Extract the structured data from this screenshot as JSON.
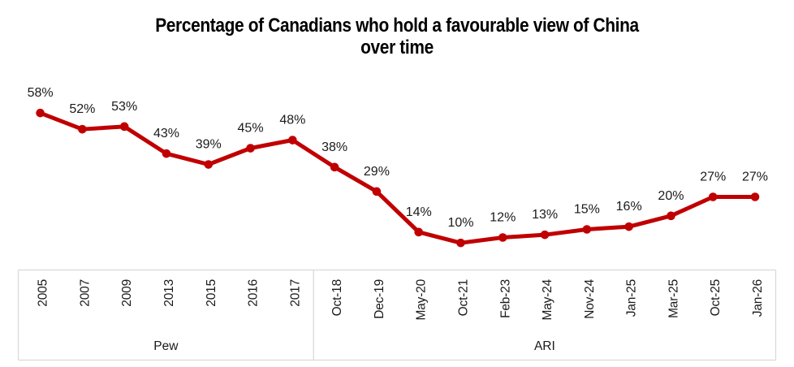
{
  "chart_data": {
    "type": "line",
    "title": "Percentage of Canadians who hold a favourable view of China over time",
    "title_lines": [
      "Percentage of Canadians who hold a favourable view of China",
      "over time"
    ],
    "categories": [
      "2005",
      "2007",
      "2009",
      "2013",
      "2015",
      "2016",
      "2017",
      "Oct-18",
      "Dec-19",
      "May-20",
      "Oct-21",
      "Feb-23",
      "May-24",
      "Nov-24",
      "Jan-25",
      "Mar-25",
      "Oct-25",
      "Jan-26"
    ],
    "values": [
      58,
      52,
      53,
      43,
      39,
      45,
      48,
      38,
      29,
      14,
      10,
      12,
      13,
      15,
      16,
      20,
      27,
      27
    ],
    "unit": "%",
    "data_labels": [
      "58%",
      "52%",
      "53%",
      "43%",
      "39%",
      "45%",
      "48%",
      "38%",
      "29%",
      "14%",
      "10%",
      "12%",
      "13%",
      "15%",
      "16%",
      "20%",
      "27%",
      "27%"
    ],
    "groups": [
      {
        "label": "Pew",
        "start": 0,
        "end": 6
      },
      {
        "label": "ARI",
        "start": 7,
        "end": 17
      }
    ],
    "ylim": [
      0,
      70
    ],
    "grid": false,
    "legend": false,
    "colors": {
      "line": "#C00000",
      "marker": "#C00000",
      "axis_line": "#D9D9D9",
      "text": "#1a1a1a",
      "title_text": "#000000"
    }
  }
}
